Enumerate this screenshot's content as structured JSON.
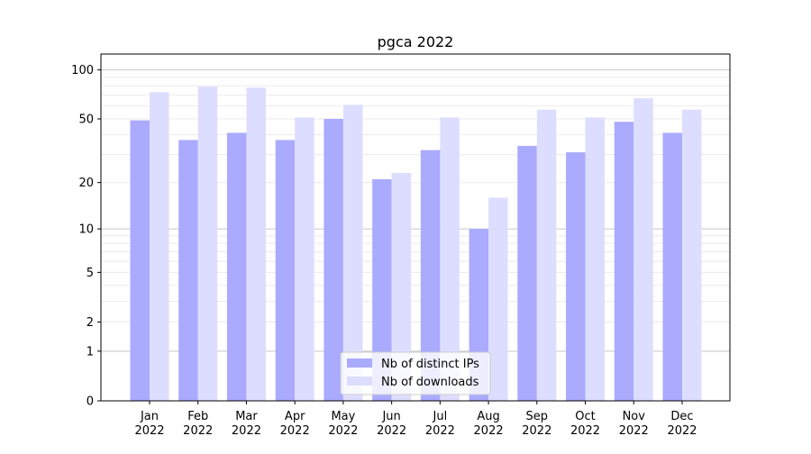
{
  "chart_data": {
    "type": "bar",
    "title": "pgca 2022",
    "xlabel": "",
    "ylabel": "",
    "yscale": "symlog",
    "ylim": [
      0,
      120
    ],
    "grid": true,
    "legend_position": "lower-center",
    "categories": [
      "Jan\n2022",
      "Feb\n2022",
      "Mar\n2022",
      "Apr\n2022",
      "May\n2022",
      "Jun\n2022",
      "Jul\n2022",
      "Aug\n2022",
      "Sep\n2022",
      "Oct\n2022",
      "Nov\n2022",
      "Dec\n2022"
    ],
    "yticks": [
      0,
      1,
      2,
      5,
      10,
      20,
      50,
      100
    ],
    "series": [
      {
        "name": "Nb of distinct IPs",
        "color": "#aaaaff",
        "values": [
          49,
          37,
          41,
          37,
          50,
          21,
          32,
          10,
          34,
          31,
          48,
          41
        ]
      },
      {
        "name": "Nb of downloads",
        "color": "#ddddff",
        "values": [
          73,
          79,
          78,
          51,
          61,
          23,
          51,
          16,
          57,
          51,
          67,
          57
        ]
      }
    ]
  }
}
